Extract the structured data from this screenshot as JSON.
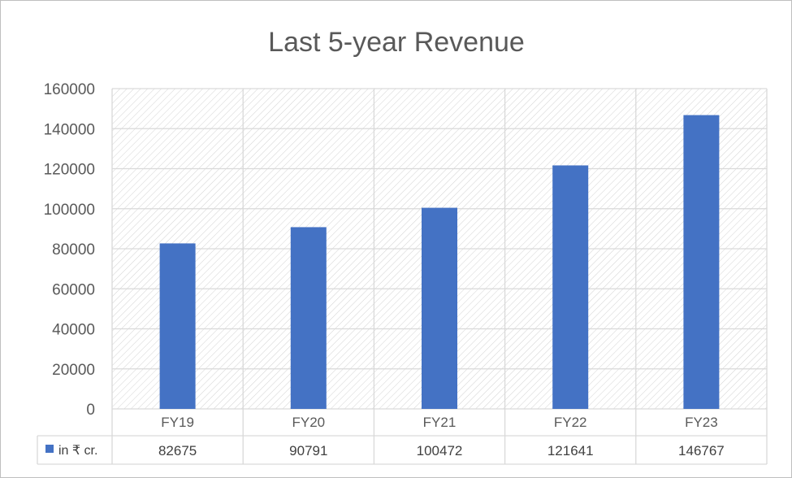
{
  "chart_data": {
    "type": "bar",
    "title": "Last 5-year Revenue",
    "categories": [
      "FY19",
      "FY20",
      "FY21",
      "FY22",
      "FY23"
    ],
    "series": [
      {
        "name": "in ₹ cr.",
        "values": [
          82675,
          90791,
          100472,
          121641,
          146767
        ],
        "color": "#4472c4"
      }
    ],
    "ylim": [
      0,
      160000
    ],
    "yticks": [
      0,
      20000,
      40000,
      60000,
      80000,
      100000,
      120000,
      140000,
      160000
    ],
    "xlabel": "",
    "ylabel": "",
    "grid": true,
    "data_table": true
  },
  "colors": {
    "bar": "#4472c4",
    "grid": "#d9d9d9",
    "hatch": "#d0d0d0",
    "text": "#595959"
  }
}
